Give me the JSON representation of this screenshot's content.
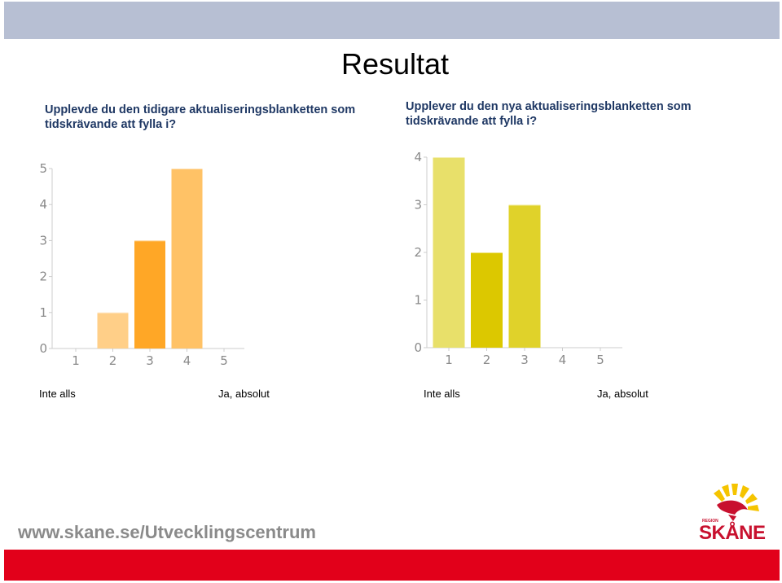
{
  "slide": {
    "title": "Resultat",
    "footer_url": "www.skane.se/Utvecklingscentrum",
    "logo": {
      "small_text": "REGION",
      "word": "SKÅNE",
      "colors": {
        "red": "#c8102e",
        "yellow": "#f5c400"
      }
    }
  },
  "chart_data": [
    {
      "type": "bar",
      "title": "Upplevde du den tidigare aktualiseringsblanketten som tidskrävande att fylla i?",
      "categories": [
        "1",
        "2",
        "3",
        "4",
        "5"
      ],
      "values": [
        0,
        1,
        3,
        5,
        0
      ],
      "ylim": [
        0,
        5
      ],
      "yticks": [
        "0",
        "1",
        "2",
        "3",
        "4",
        "5"
      ],
      "colors": [
        "#ffe2a8",
        "#ffcf88",
        "#ffa726",
        "#ffc266",
        "#ffe2a8"
      ],
      "scale_low_label": "Inte alls",
      "scale_high_label": "Ja, absolut",
      "grid": false,
      "legend": "none"
    },
    {
      "type": "bar",
      "title": "Upplever du den nya aktualiseringsblanketten som tidskrävande att fylla i?",
      "categories": [
        "1",
        "2",
        "3",
        "4",
        "5"
      ],
      "values": [
        4,
        2,
        3,
        0,
        0
      ],
      "ylim": [
        0,
        4
      ],
      "yticks": [
        "0",
        "1",
        "2",
        "3",
        "4"
      ],
      "colors": [
        "#e8e06a",
        "#dcc800",
        "#e0d22a",
        "#e8e06a",
        "#e8e06a"
      ],
      "scale_low_label": "Inte alls",
      "scale_high_label": "Ja, absolut",
      "grid": false,
      "legend": "none"
    }
  ]
}
